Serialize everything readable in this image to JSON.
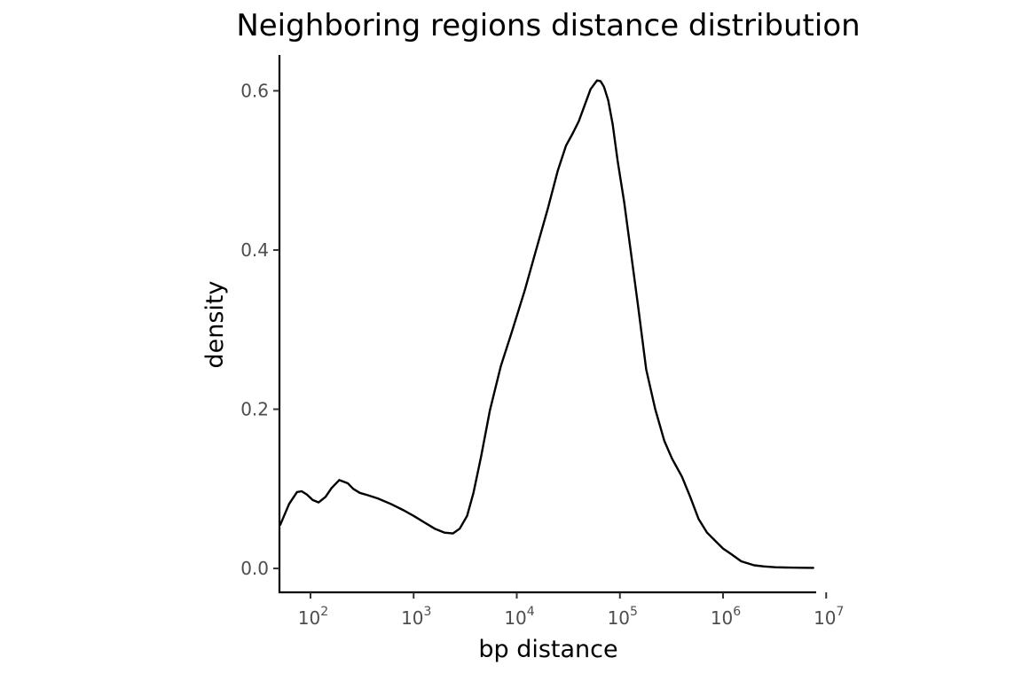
{
  "chart_data": {
    "type": "line",
    "title": "Neighboring regions distance distribution",
    "xlabel": "bp distance",
    "ylabel": "density",
    "x_scale": "log10",
    "xlim": [
      50,
      8000000
    ],
    "ylim": [
      -0.03,
      0.645
    ],
    "x_ticks": [
      {
        "value": 100,
        "base": "10",
        "exp": "2"
      },
      {
        "value": 1000,
        "base": "10",
        "exp": "3"
      },
      {
        "value": 10000,
        "base": "10",
        "exp": "4"
      },
      {
        "value": 100000,
        "base": "10",
        "exp": "5"
      },
      {
        "value": 1000000,
        "base": "10",
        "exp": "6"
      },
      {
        "value": 10000000,
        "base": "10",
        "exp": "7"
      }
    ],
    "y_ticks": [
      {
        "value": 0.0,
        "label": "0.0"
      },
      {
        "value": 0.2,
        "label": "0.2"
      },
      {
        "value": 0.4,
        "label": "0.4"
      },
      {
        "value": 0.6,
        "label": "0.6"
      }
    ],
    "grid": false,
    "legend": "none",
    "line_color": "#000000",
    "series": [
      {
        "x": [
          51,
          62,
          74,
          82,
          92,
          105,
          120,
          140,
          160,
          190,
          230,
          260,
          300,
          360,
          450,
          600,
          800,
          1000,
          1300,
          1600,
          2000,
          2400,
          2800,
          3300,
          3800,
          4500,
          5500,
          7000,
          9000,
          12000,
          15000,
          20000,
          25000,
          30000,
          35000,
          40000,
          45000,
          52000,
          60000,
          65000,
          70000,
          77000,
          85000,
          95000,
          110000,
          130000,
          150000,
          180000,
          220000,
          270000,
          320000,
          400000,
          480000,
          580000,
          700000,
          850000,
          1000000,
          1200000,
          1500000,
          2000000,
          2500000,
          3200000,
          4000000,
          5000000,
          6000000,
          7500000
        ],
        "y": [
          0.055,
          0.081,
          0.096,
          0.097,
          0.093,
          0.086,
          0.083,
          0.09,
          0.101,
          0.111,
          0.107,
          0.1,
          0.095,
          0.092,
          0.088,
          0.081,
          0.073,
          0.066,
          0.057,
          0.05,
          0.045,
          0.044,
          0.05,
          0.066,
          0.095,
          0.14,
          0.199,
          0.254,
          0.298,
          0.35,
          0.395,
          0.452,
          0.5,
          0.531,
          0.547,
          0.562,
          0.58,
          0.602,
          0.613,
          0.612,
          0.605,
          0.588,
          0.558,
          0.512,
          0.46,
          0.39,
          0.33,
          0.25,
          0.2,
          0.16,
          0.138,
          0.115,
          0.09,
          0.062,
          0.045,
          0.034,
          0.025,
          0.018,
          0.009,
          0.004,
          0.0025,
          0.0015,
          0.0012,
          0.001,
          0.0008,
          0.0007
        ]
      }
    ]
  }
}
